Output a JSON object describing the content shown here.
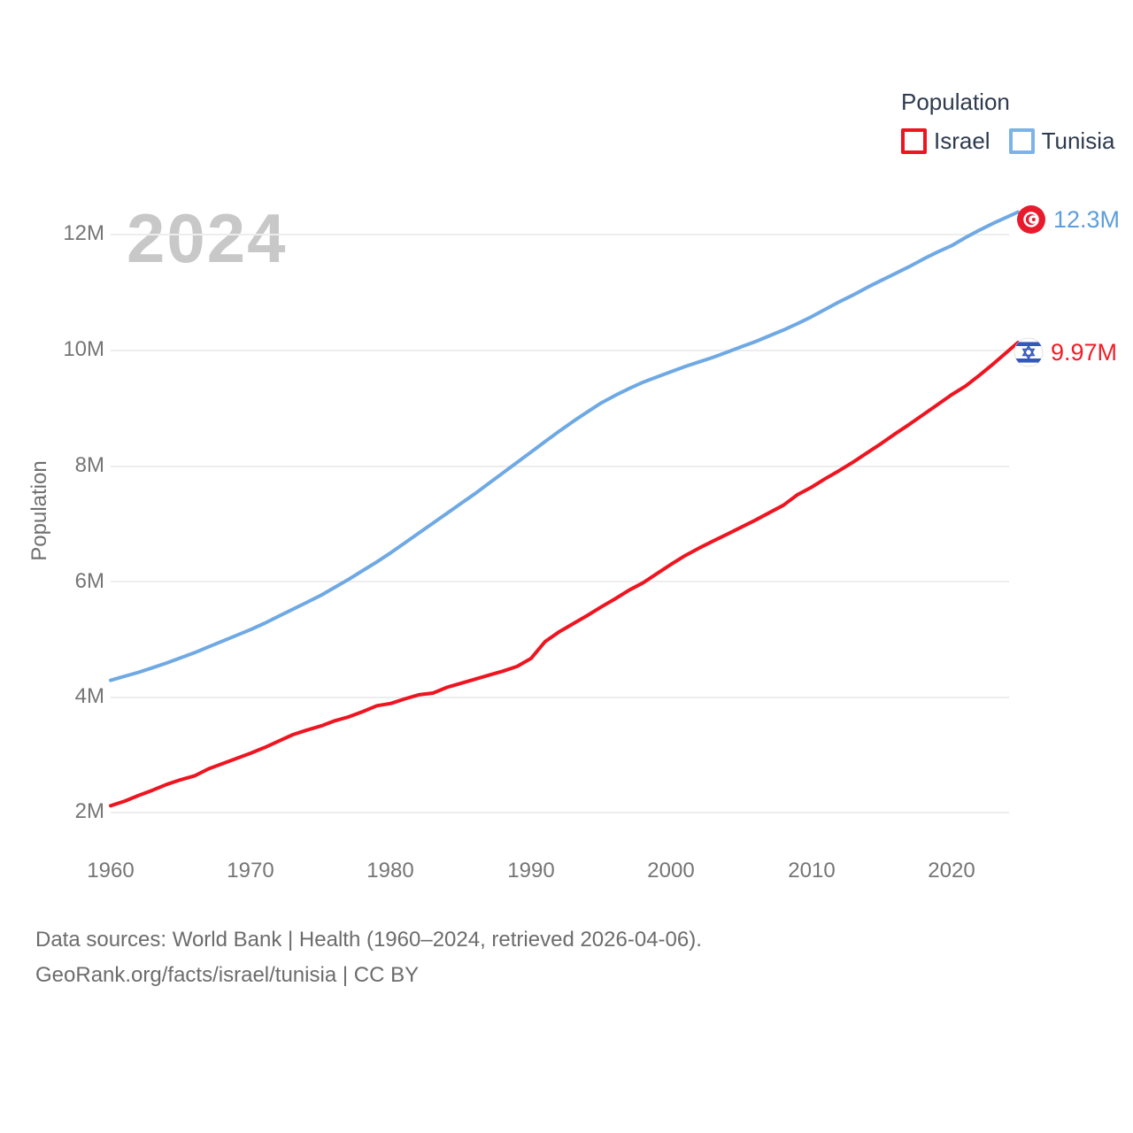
{
  "legend": {
    "title": "Population",
    "items": [
      {
        "label": "Israel",
        "color": "#ee1420"
      },
      {
        "label": "Tunisia",
        "color": "#7db3e8"
      }
    ]
  },
  "watermark": "2024",
  "axis": {
    "ylabel": "Population",
    "yticks": [
      "12M",
      "10M",
      "8M",
      "6M",
      "4M",
      "2M"
    ],
    "xticks": [
      "1960",
      "1970",
      "1980",
      "1990",
      "2000",
      "2010",
      "2020"
    ]
  },
  "endpoints": {
    "tunisia": {
      "value": "12.3M",
      "color": "#5e9edb",
      "flag": "tunisia-flag"
    },
    "israel": {
      "value": "9.97M",
      "color": "#f01e28",
      "flag": "israel-flag"
    }
  },
  "footer": {
    "line1": "Data sources: World Bank | Health (1960–2024, retrieved 2026-04-06).",
    "line2": "GeoRank.org/facts/israel/tunisia | CC BY"
  },
  "chart_data": {
    "type": "line",
    "title": "Population",
    "xlabel": "",
    "ylabel": "Population",
    "xlim": [
      1960,
      2024
    ],
    "ylim": [
      2,
      12.5
    ],
    "grid": "horizontal",
    "legend_position": "top-right",
    "x": [
      1960,
      1961,
      1962,
      1963,
      1964,
      1965,
      1966,
      1967,
      1968,
      1969,
      1970,
      1971,
      1972,
      1973,
      1974,
      1975,
      1976,
      1977,
      1978,
      1979,
      1980,
      1981,
      1982,
      1983,
      1984,
      1985,
      1986,
      1987,
      1988,
      1989,
      1990,
      1991,
      1992,
      1993,
      1994,
      1995,
      1996,
      1997,
      1998,
      1999,
      2000,
      2001,
      2002,
      2003,
      2004,
      2005,
      2006,
      2007,
      2008,
      2009,
      2010,
      2011,
      2012,
      2013,
      2014,
      2015,
      2016,
      2017,
      2018,
      2019,
      2020,
      2021,
      2022,
      2023,
      2024
    ],
    "series": [
      {
        "name": "Israel",
        "color": "#ee1420",
        "end_label": "9.97M",
        "values": [
          2.11,
          2.19,
          2.29,
          2.38,
          2.48,
          2.56,
          2.63,
          2.75,
          2.84,
          2.93,
          3.02,
          3.12,
          3.23,
          3.34,
          3.42,
          3.49,
          3.58,
          3.65,
          3.74,
          3.84,
          3.88,
          3.96,
          4.03,
          4.06,
          4.16,
          4.23,
          4.3,
          4.37,
          4.44,
          4.52,
          4.66,
          4.95,
          5.12,
          5.26,
          5.4,
          5.55,
          5.69,
          5.84,
          5.97,
          6.13,
          6.29,
          6.44,
          6.57,
          6.69,
          6.81,
          6.93,
          7.05,
          7.18,
          7.31,
          7.49,
          7.62,
          7.77,
          7.91,
          8.06,
          8.22,
          8.38,
          8.55,
          8.71,
          8.88,
          9.05,
          9.22,
          9.37,
          9.56,
          9.76,
          9.97
        ]
      },
      {
        "name": "Tunisia",
        "color": "#6fa9e4",
        "end_label": "12.3M",
        "values": [
          4.28,
          4.35,
          4.42,
          4.5,
          4.58,
          4.67,
          4.76,
          4.86,
          4.96,
          5.06,
          5.16,
          5.27,
          5.39,
          5.51,
          5.63,
          5.75,
          5.89,
          6.03,
          6.18,
          6.33,
          6.49,
          6.66,
          6.83,
          7.0,
          7.17,
          7.34,
          7.51,
          7.69,
          7.87,
          8.05,
          8.23,
          8.41,
          8.59,
          8.76,
          8.92,
          9.08,
          9.21,
          9.33,
          9.44,
          9.53,
          9.62,
          9.71,
          9.79,
          9.87,
          9.96,
          10.05,
          10.14,
          10.24,
          10.34,
          10.45,
          10.57,
          10.7,
          10.83,
          10.95,
          11.08,
          11.2,
          11.32,
          11.44,
          11.57,
          11.69,
          11.8,
          11.94,
          12.07,
          12.19,
          12.3
        ]
      }
    ]
  }
}
